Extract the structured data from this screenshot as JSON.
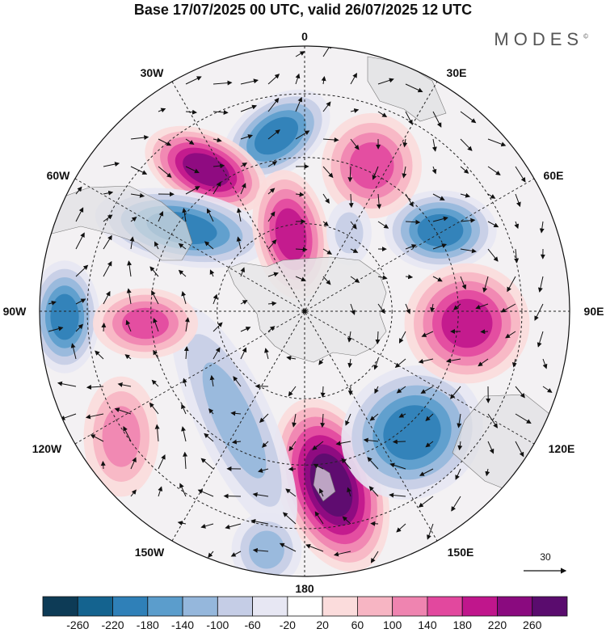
{
  "title": "Base 17/07/2025 00 UTC, valid 26/07/2025 12 UTC",
  "brand": {
    "name": "MODES",
    "mark": "©"
  },
  "lon_labels": {
    "l0": "0",
    "l30e": "30E",
    "l60e": "60E",
    "l90e": "90E",
    "l120e": "120E",
    "l150e": "150E",
    "l180": "180",
    "l150w": "150W",
    "l120w": "120W",
    "l90w": "90W",
    "l60w": "60W",
    "l30w": "30W"
  },
  "vector_scale": {
    "label": "30"
  },
  "colorbar": {
    "labels": [
      "-260",
      "-220",
      "-180",
      "-140",
      "-100",
      "-60",
      "-20",
      "20",
      "60",
      "100",
      "140",
      "180",
      "220",
      "260"
    ],
    "colors": [
      "#0d3b56",
      "#14638f",
      "#2f80b8",
      "#5b9dcc",
      "#95b7dc",
      "#c5cde6",
      "#e7e7f3",
      "#ffffff",
      "#fbdcdc",
      "#f7b5c3",
      "#ef84b0",
      "#e2489e",
      "#c0168c",
      "#8a0a7f",
      "#5a0c6e"
    ]
  },
  "anomaly_centers": [
    {
      "kind": "negative",
      "value": -180
    },
    {
      "kind": "positive",
      "value": 240
    },
    {
      "kind": "negative",
      "value": -180
    },
    {
      "kind": "positive",
      "value": 140
    },
    {
      "kind": "negative",
      "value": -180
    },
    {
      "kind": "positive",
      "value": 180
    },
    {
      "kind": "negative",
      "value": -180
    },
    {
      "kind": "positive",
      "value": 260
    },
    {
      "kind": "negative",
      "value": -180
    },
    {
      "kind": "positive",
      "value": 100
    },
    {
      "kind": "negative",
      "value": -100
    },
    {
      "kind": "positive",
      "value": 180
    },
    {
      "kind": "negative",
      "value": -100
    },
    {
      "kind": "positive",
      "value": 140
    },
    {
      "kind": "negative",
      "value": -60
    }
  ]
}
